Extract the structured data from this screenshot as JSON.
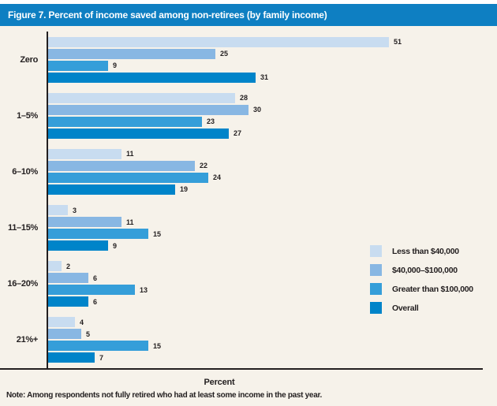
{
  "header": {
    "title": "Figure 7. Percent of income saved among non-retirees (by family income)"
  },
  "chart_data": {
    "type": "bar",
    "orientation": "horizontal",
    "title": "Figure 7. Percent of income saved among non-retirees (by family income)",
    "categories": [
      "Zero",
      "1–5%",
      "6–10%",
      "11–15%",
      "16–20%",
      "21%+"
    ],
    "series": [
      {
        "name": "Less than $40,000",
        "color": "#c8dcf0",
        "values": [
          51,
          28,
          11,
          3,
          2,
          4
        ]
      },
      {
        "name": "$40,000–$100,000",
        "color": "#88b7e3",
        "values": [
          25,
          30,
          22,
          11,
          6,
          5
        ]
      },
      {
        "name": "Greater than $100,000",
        "color": "#359ed9",
        "values": [
          9,
          23,
          24,
          15,
          13,
          15
        ]
      },
      {
        "name": "Overall",
        "color": "#0084c9",
        "values": [
          31,
          27,
          19,
          9,
          6,
          7
        ]
      }
    ],
    "xlabel": "Percent",
    "xlim": [
      0,
      65
    ],
    "grid": false,
    "data_labels": true,
    "legend_position": "middle-right",
    "note": "Note: Among respondents not fully retired who had at least some income in the past year."
  },
  "colors": {
    "banner": "#0e7fc2",
    "background": "#f6f2ea",
    "axis": "#231f20",
    "text": "#231f20"
  }
}
